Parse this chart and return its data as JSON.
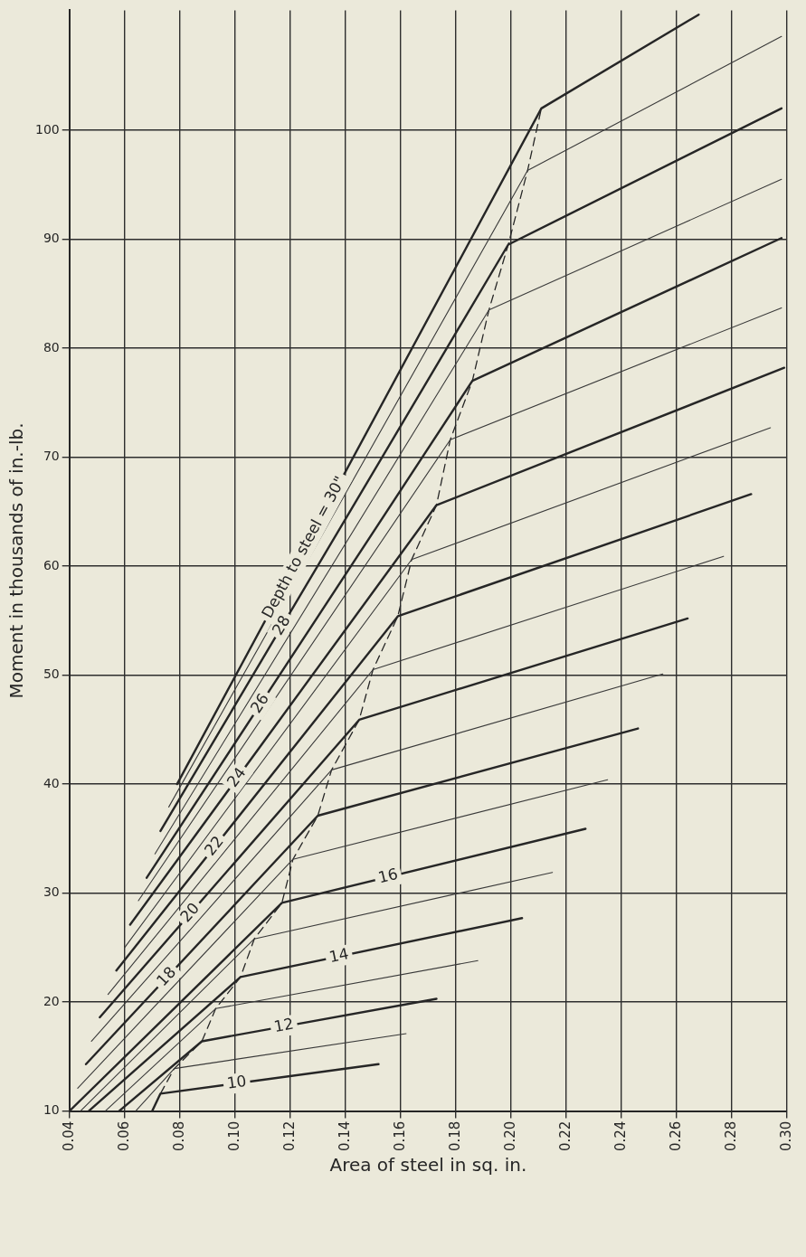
{
  "chart_data": {
    "type": "line",
    "xlabel": "Area of steel in sq. in.",
    "ylabel": "Moment in thousands of in.-lb.",
    "xlim": [
      0.04,
      0.3
    ],
    "ylim": [
      10,
      111
    ],
    "xticks": [
      0.04,
      0.06,
      0.08,
      {
        "value": 0.1,
        "label": "0.10"
      },
      0.12,
      0.14,
      0.16,
      0.18,
      {
        "value": 0.2,
        "label": "0.20"
      },
      0.22,
      0.24,
      0.26,
      0.28,
      {
        "value": 0.3,
        "label": "0.30"
      }
    ],
    "yticks": [
      10,
      20,
      30,
      40,
      50,
      60,
      70,
      80,
      90,
      100
    ],
    "grid": true,
    "series": [
      {
        "name": "10",
        "color": "#262626",
        "x": [
          0.07,
          0.073,
          0.152
        ],
        "values": [
          10,
          11.6,
          14.3
        ]
      },
      {
        "color": "#3a3a3a",
        "x": [
          0.064,
          0.078,
          0.162
        ],
        "values": [
          10,
          13.9,
          17.1
        ]
      },
      {
        "name": "12",
        "color": "#262626",
        "x": [
          0.058,
          0.088,
          0.173
        ],
        "values": [
          10,
          16.4,
          20.3
        ]
      },
      {
        "color": "#3a3a3a",
        "x": [
          0.053,
          0.093,
          0.188
        ],
        "values": [
          10,
          19.4,
          23.8
        ]
      },
      {
        "name": "14",
        "color": "#262626",
        "x": [
          0.047,
          0.102,
          0.204
        ],
        "values": [
          10,
          22.3,
          27.7
        ]
      },
      {
        "color": "#3a3a3a",
        "x": [
          0.044,
          0.107,
          0.215
        ],
        "values": [
          10,
          25.8,
          31.9
        ]
      },
      {
        "name": "16",
        "color": "#262626",
        "x": [
          0.04,
          0.117,
          0.227
        ],
        "values": [
          10,
          29.1,
          35.9
        ]
      },
      {
        "color": "#3a3a3a",
        "x": [
          0.043,
          0.121,
          0.235
        ],
        "values": [
          12.1,
          33.1,
          40.4
        ]
      },
      {
        "name": "18",
        "color": "#262626",
        "x": [
          0.046,
          0.13,
          0.246
        ],
        "values": [
          14.3,
          37.1,
          45.1
        ]
      },
      {
        "color": "#3a3a3a",
        "x": [
          0.048,
          0.135,
          0.255
        ],
        "values": [
          16.4,
          41.3,
          50.1
        ]
      },
      {
        "name": "20",
        "color": "#262626",
        "x": [
          0.051,
          0.145,
          0.264
        ],
        "values": [
          18.6,
          45.9,
          55.2
        ]
      },
      {
        "color": "#3a3a3a",
        "x": [
          0.054,
          0.15,
          0.277
        ],
        "values": [
          20.7,
          50.5,
          60.9
        ]
      },
      {
        "name": "22",
        "color": "#262626",
        "x": [
          0.057,
          0.159,
          0.287
        ],
        "values": [
          22.9,
          55.4,
          66.6
        ]
      },
      {
        "color": "#3a3a3a",
        "x": [
          0.06,
          0.164,
          0.294
        ],
        "values": [
          25.0,
          60.6,
          72.7
        ]
      },
      {
        "name": "24",
        "color": "#262626",
        "x": [
          0.062,
          0.173,
          0.299
        ],
        "values": [
          27.1,
          65.6,
          78.2
        ]
      },
      {
        "color": "#3a3a3a",
        "x": [
          0.065,
          0.178,
          0.298
        ],
        "values": [
          29.3,
          71.6,
          83.7
        ]
      },
      {
        "name": "26",
        "color": "#262626",
        "x": [
          0.068,
          0.186,
          0.298
        ],
        "values": [
          31.4,
          77.0,
          90.1
        ]
      },
      {
        "color": "#3a3a3a",
        "x": [
          0.071,
          0.192,
          0.298
        ],
        "values": [
          33.6,
          83.5,
          95.5
        ]
      },
      {
        "name": "28",
        "color": "#262626",
        "x": [
          0.073,
          0.199,
          0.298
        ],
        "values": [
          35.7,
          89.5,
          102.0
        ]
      },
      {
        "color": "#3a3a3a",
        "x": [
          0.076,
          0.206,
          0.298
        ],
        "values": [
          37.9,
          96.3,
          108.6
        ]
      },
      {
        "name": "Depth to steel = 30\"",
        "color": "#262626",
        "x": [
          0.079,
          0.211,
          0.268
        ],
        "values": [
          40.0,
          102.0,
          110.6
        ]
      },
      {
        "color": "#262626",
        "line_style": "dashed",
        "x": [
          0.073,
          0.078,
          0.088,
          0.093,
          0.102,
          0.107,
          0.117,
          0.121,
          0.13,
          0.135,
          0.145,
          0.15,
          0.159,
          0.164,
          0.173,
          0.178,
          0.186,
          0.192,
          0.199,
          0.206,
          0.211
        ],
        "values": [
          11.6,
          13.9,
          16.4,
          19.4,
          22.3,
          25.8,
          29.1,
          33.1,
          37.1,
          41.3,
          45.9,
          50.5,
          55.4,
          60.6,
          65.6,
          71.6,
          77.0,
          83.5,
          89.5,
          96.3,
          102.0
        ]
      }
    ]
  }
}
